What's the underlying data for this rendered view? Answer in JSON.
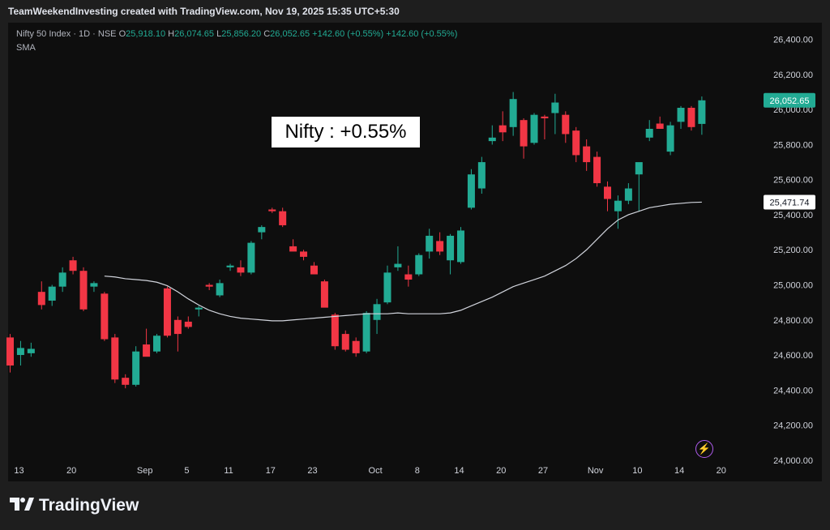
{
  "header": {
    "attribution": "TeamWeekendInvesting created with TradingView.com, Nov 19, 2025 15:35 UTC+5:30"
  },
  "legend": {
    "symbol": "Nifty 50 Index · 1D · NSE",
    "open_label": "O",
    "open": "25,918.10",
    "high_label": "H",
    "high": "26,074.65",
    "low_label": "L",
    "low": "25,856.20",
    "close_label": "C",
    "close": "26,052.65",
    "change": "+142.60 (+0.55%)",
    "change2": "+142.60 (+0.55%)",
    "indicator": "SMA"
  },
  "annotation": {
    "text": "Nifty : +0.55%"
  },
  "footer": {
    "brand": "TradingView"
  },
  "icons": {
    "brand_logo": "tradingview-logo-icon",
    "quick_action": "lightning-icon"
  },
  "colors": {
    "up": "#22ab94",
    "down": "#f23645",
    "sma": "#d1d4dc",
    "price_label": "#22ab94"
  },
  "chart_data": {
    "type": "candlestick",
    "y_ticks": [
      "26,400.00",
      "26,200.00",
      "26,000.00",
      "25,800.00",
      "25,600.00",
      "25,400.00",
      "25,200.00",
      "25,000.00",
      "24,800.00",
      "24,600.00",
      "24,400.00",
      "24,200.00",
      "24,000.00"
    ],
    "y_tick_values": [
      26400,
      26200,
      26000,
      25800,
      25600,
      25400,
      25200,
      25000,
      24800,
      24600,
      24400,
      24200,
      24000
    ],
    "ylim": [
      23990,
      26440
    ],
    "x_ticks": [
      {
        "label": "13",
        "i": 0
      },
      {
        "label": "20",
        "i": 5
      },
      {
        "label": "Sep",
        "i": 12
      },
      {
        "label": "5",
        "i": 16
      },
      {
        "label": "11",
        "i": 20
      },
      {
        "label": "17",
        "i": 24
      },
      {
        "label": "23",
        "i": 28
      },
      {
        "label": "Oct",
        "i": 34
      },
      {
        "label": "8",
        "i": 38
      },
      {
        "label": "14",
        "i": 42
      },
      {
        "label": "20",
        "i": 46
      },
      {
        "label": "27",
        "i": 50
      },
      {
        "label": "Nov",
        "i": 55
      },
      {
        "label": "10",
        "i": 59
      },
      {
        "label": "14",
        "i": 63
      },
      {
        "label": "20",
        "i": 67
      }
    ],
    "last_price_label": "26,052.65",
    "last_price": 26052.65,
    "sma_label": "25,471.74",
    "sma_value": 25471.74,
    "candles": [
      {
        "o": 24700,
        "h": 24720,
        "l": 24500,
        "c": 24540
      },
      {
        "o": 24600,
        "h": 24680,
        "l": 24540,
        "c": 24640
      },
      {
        "o": 24610,
        "h": 24670,
        "l": 24590,
        "c": 24635
      },
      {
        "o": 24960,
        "h": 25020,
        "l": 24860,
        "c": 24885
      },
      {
        "o": 24910,
        "h": 25000,
        "l": 24880,
        "c": 24990
      },
      {
        "o": 24990,
        "h": 25100,
        "l": 24960,
        "c": 25070
      },
      {
        "o": 25140,
        "h": 25160,
        "l": 25060,
        "c": 25080
      },
      {
        "o": 25080,
        "h": 25100,
        "l": 24850,
        "c": 24860
      },
      {
        "o": 24990,
        "h": 25020,
        "l": 24960,
        "c": 25010
      },
      {
        "o": 24950,
        "h": 24960,
        "l": 24680,
        "c": 24690
      },
      {
        "o": 24700,
        "h": 24720,
        "l": 24440,
        "c": 24460
      },
      {
        "o": 24470,
        "h": 24490,
        "l": 24410,
        "c": 24430
      },
      {
        "o": 24430,
        "h": 24650,
        "l": 24420,
        "c": 24620
      },
      {
        "o": 24660,
        "h": 24750,
        "l": 24600,
        "c": 24590
      },
      {
        "o": 24620,
        "h": 24720,
        "l": 24610,
        "c": 24710
      },
      {
        "o": 24980,
        "h": 24990,
        "l": 24700,
        "c": 24710
      },
      {
        "o": 24800,
        "h": 24820,
        "l": 24620,
        "c": 24720
      },
      {
        "o": 24790,
        "h": 24820,
        "l": 24750,
        "c": 24760
      },
      {
        "o": 24860,
        "h": 24880,
        "l": 24820,
        "c": 24870
      },
      {
        "o": 25000,
        "h": 25010,
        "l": 24970,
        "c": 24990
      },
      {
        "o": 24940,
        "h": 25030,
        "l": 24930,
        "c": 25010
      },
      {
        "o": 25100,
        "h": 25120,
        "l": 25080,
        "c": 25110
      },
      {
        "o": 25100,
        "h": 25140,
        "l": 25050,
        "c": 25070
      },
      {
        "o": 25070,
        "h": 25250,
        "l": 25060,
        "c": 25240
      },
      {
        "o": 25300,
        "h": 25340,
        "l": 25260,
        "c": 25330
      },
      {
        "o": 25430,
        "h": 25440,
        "l": 25410,
        "c": 25420
      },
      {
        "o": 25420,
        "h": 25440,
        "l": 25330,
        "c": 25340
      },
      {
        "o": 25220,
        "h": 25260,
        "l": 25200,
        "c": 25190
      },
      {
        "o": 25190,
        "h": 25200,
        "l": 25140,
        "c": 25160
      },
      {
        "o": 25110,
        "h": 25130,
        "l": 25060,
        "c": 25060
      },
      {
        "o": 25020,
        "h": 25030,
        "l": 24880,
        "c": 24870
      },
      {
        "o": 24830,
        "h": 24840,
        "l": 24630,
        "c": 24650
      },
      {
        "o": 24720,
        "h": 24740,
        "l": 24620,
        "c": 24630
      },
      {
        "o": 24680,
        "h": 24700,
        "l": 24590,
        "c": 24610
      },
      {
        "o": 24620,
        "h": 24850,
        "l": 24610,
        "c": 24840
      },
      {
        "o": 24800,
        "h": 24920,
        "l": 24720,
        "c": 24890
      },
      {
        "o": 24900,
        "h": 25110,
        "l": 24890,
        "c": 25070
      },
      {
        "o": 25100,
        "h": 25220,
        "l": 25080,
        "c": 25120
      },
      {
        "o": 25060,
        "h": 25110,
        "l": 24990,
        "c": 25030
      },
      {
        "o": 25060,
        "h": 25180,
        "l": 25050,
        "c": 25170
      },
      {
        "o": 25190,
        "h": 25320,
        "l": 25150,
        "c": 25280
      },
      {
        "o": 25250,
        "h": 25300,
        "l": 25170,
        "c": 25190
      },
      {
        "o": 25140,
        "h": 25290,
        "l": 25060,
        "c": 25280
      },
      {
        "o": 25130,
        "h": 25330,
        "l": 25120,
        "c": 25310
      },
      {
        "o": 25440,
        "h": 25660,
        "l": 25430,
        "c": 25630
      },
      {
        "o": 25550,
        "h": 25730,
        "l": 25520,
        "c": 25700
      },
      {
        "o": 25820,
        "h": 25910,
        "l": 25800,
        "c": 25840
      },
      {
        "o": 25910,
        "h": 25990,
        "l": 25820,
        "c": 25870
      },
      {
        "o": 25900,
        "h": 26100,
        "l": 25850,
        "c": 26060
      },
      {
        "o": 25940,
        "h": 25950,
        "l": 25720,
        "c": 25790
      },
      {
        "o": 25810,
        "h": 25980,
        "l": 25800,
        "c": 25970
      },
      {
        "o": 25960,
        "h": 25970,
        "l": 25830,
        "c": 25950
      },
      {
        "o": 25980,
        "h": 26090,
        "l": 25860,
        "c": 26040
      },
      {
        "o": 25970,
        "h": 25990,
        "l": 25810,
        "c": 25860
      },
      {
        "o": 25880,
        "h": 25900,
        "l": 25700,
        "c": 25740
      },
      {
        "o": 25790,
        "h": 25830,
        "l": 25650,
        "c": 25700
      },
      {
        "o": 25730,
        "h": 25760,
        "l": 25560,
        "c": 25580
      },
      {
        "o": 25560,
        "h": 25590,
        "l": 25420,
        "c": 25490
      },
      {
        "o": 25420,
        "h": 25510,
        "l": 25320,
        "c": 25480
      },
      {
        "o": 25480,
        "h": 25580,
        "l": 25460,
        "c": 25550
      },
      {
        "o": 25630,
        "h": 25690,
        "l": 25420,
        "c": 25700
      },
      {
        "o": 25840,
        "h": 25940,
        "l": 25820,
        "c": 25890
      },
      {
        "o": 25920,
        "h": 25960,
        "l": 25890,
        "c": 25890
      },
      {
        "o": 25760,
        "h": 25930,
        "l": 25740,
        "c": 25910
      },
      {
        "o": 25930,
        "h": 26020,
        "l": 25890,
        "c": 26010
      },
      {
        "o": 26010,
        "h": 26020,
        "l": 25880,
        "c": 25900
      },
      {
        "o": 25918.1,
        "h": 26074.65,
        "l": 25856.2,
        "c": 26052.65
      }
    ],
    "sma": [
      25050,
      25045,
      25035,
      25030,
      25025,
      25015,
      24995,
      24960,
      24920,
      24885,
      24855,
      24835,
      24820,
      24810,
      24805,
      24800,
      24795,
      24795,
      24800,
      24805,
      24810,
      24815,
      24820,
      24825,
      24830,
      24835,
      24835,
      24835,
      24840,
      24835,
      24835,
      24835,
      24835,
      24840,
      24855,
      24880,
      24905,
      24930,
      24960,
      24990,
      25010,
      25030,
      25050,
      25080,
      25110,
      25150,
      25200,
      25260,
      25320,
      25370,
      25400,
      25420,
      25440,
      25450,
      25460,
      25465,
      25470,
      25471.74
    ]
  }
}
